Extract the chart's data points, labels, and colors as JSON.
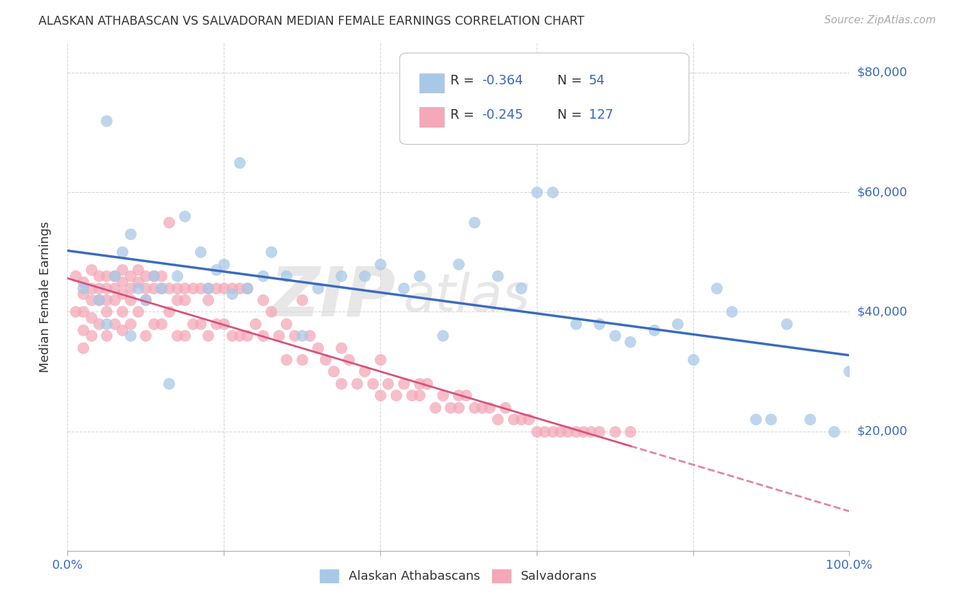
{
  "title": "ALASKAN ATHABASCAN VS SALVADORAN MEDIAN FEMALE EARNINGS CORRELATION CHART",
  "source": "Source: ZipAtlas.com",
  "ylabel": "Median Female Earnings",
  "ylim": [
    0,
    85000
  ],
  "xlim": [
    0,
    1.0
  ],
  "yticks": [
    20000,
    40000,
    60000,
    80000
  ],
  "ytick_labels": [
    "$20,000",
    "$40,000",
    "$60,000",
    "$80,000"
  ],
  "legend_label1": "Alaskan Athabascans",
  "legend_label2": "Salvadorans",
  "blue_color": "#a8c8e8",
  "pink_color": "#f4a8b8",
  "blue_line_color": "#3a6bbf",
  "pink_line_color": "#d94f7a",
  "background_color": "#ffffff",
  "watermark_zip": "ZIP",
  "watermark_atlas": "atlas",
  "text_color_blue": "#3a6bbf",
  "text_color_dark": "#333333",
  "text_color_gray": "#aaaaaa",
  "blue_x": [
    0.02,
    0.04,
    0.05,
    0.05,
    0.06,
    0.07,
    0.08,
    0.08,
    0.09,
    0.1,
    0.11,
    0.12,
    0.13,
    0.14,
    0.15,
    0.17,
    0.18,
    0.19,
    0.2,
    0.21,
    0.22,
    0.23,
    0.25,
    0.26,
    0.28,
    0.3,
    0.32,
    0.35,
    0.38,
    0.4,
    0.43,
    0.45,
    0.48,
    0.5,
    0.52,
    0.55,
    0.58,
    0.6,
    0.62,
    0.65,
    0.68,
    0.7,
    0.72,
    0.75,
    0.78,
    0.8,
    0.83,
    0.85,
    0.88,
    0.9,
    0.92,
    0.95,
    0.98,
    1.0
  ],
  "blue_y": [
    44000,
    42000,
    72000,
    38000,
    46000,
    50000,
    53000,
    36000,
    44000,
    42000,
    46000,
    44000,
    28000,
    46000,
    56000,
    50000,
    44000,
    47000,
    48000,
    43000,
    65000,
    44000,
    46000,
    50000,
    46000,
    36000,
    44000,
    46000,
    46000,
    48000,
    44000,
    46000,
    36000,
    48000,
    55000,
    46000,
    44000,
    60000,
    60000,
    38000,
    38000,
    36000,
    35000,
    37000,
    38000,
    32000,
    44000,
    40000,
    22000,
    22000,
    38000,
    22000,
    20000,
    30000
  ],
  "pink_x": [
    0.01,
    0.01,
    0.02,
    0.02,
    0.02,
    0.02,
    0.02,
    0.03,
    0.03,
    0.03,
    0.03,
    0.03,
    0.04,
    0.04,
    0.04,
    0.04,
    0.05,
    0.05,
    0.05,
    0.05,
    0.05,
    0.06,
    0.06,
    0.06,
    0.06,
    0.07,
    0.07,
    0.07,
    0.07,
    0.07,
    0.08,
    0.08,
    0.08,
    0.08,
    0.09,
    0.09,
    0.09,
    0.1,
    0.1,
    0.1,
    0.1,
    0.11,
    0.11,
    0.11,
    0.12,
    0.12,
    0.12,
    0.13,
    0.13,
    0.13,
    0.14,
    0.14,
    0.14,
    0.15,
    0.15,
    0.15,
    0.16,
    0.16,
    0.17,
    0.17,
    0.18,
    0.18,
    0.18,
    0.19,
    0.19,
    0.2,
    0.2,
    0.21,
    0.21,
    0.22,
    0.22,
    0.23,
    0.23,
    0.24,
    0.25,
    0.25,
    0.26,
    0.27,
    0.28,
    0.28,
    0.29,
    0.3,
    0.3,
    0.31,
    0.32,
    0.33,
    0.34,
    0.35,
    0.35,
    0.36,
    0.37,
    0.38,
    0.39,
    0.4,
    0.4,
    0.41,
    0.42,
    0.43,
    0.44,
    0.45,
    0.45,
    0.46,
    0.47,
    0.48,
    0.49,
    0.5,
    0.5,
    0.51,
    0.52,
    0.53,
    0.54,
    0.55,
    0.56,
    0.57,
    0.58,
    0.59,
    0.6,
    0.61,
    0.62,
    0.63,
    0.64,
    0.65,
    0.66,
    0.67,
    0.68,
    0.7,
    0.72
  ],
  "pink_y": [
    46000,
    40000,
    45000,
    43000,
    40000,
    37000,
    34000,
    47000,
    44000,
    42000,
    39000,
    36000,
    46000,
    44000,
    42000,
    38000,
    46000,
    44000,
    42000,
    40000,
    36000,
    46000,
    44000,
    42000,
    38000,
    47000,
    45000,
    43000,
    40000,
    37000,
    46000,
    44000,
    42000,
    38000,
    47000,
    45000,
    40000,
    46000,
    44000,
    42000,
    36000,
    46000,
    44000,
    38000,
    46000,
    44000,
    38000,
    55000,
    44000,
    40000,
    44000,
    42000,
    36000,
    44000,
    42000,
    36000,
    44000,
    38000,
    44000,
    38000,
    44000,
    42000,
    36000,
    44000,
    38000,
    44000,
    38000,
    44000,
    36000,
    44000,
    36000,
    44000,
    36000,
    38000,
    42000,
    36000,
    40000,
    36000,
    38000,
    32000,
    36000,
    42000,
    32000,
    36000,
    34000,
    32000,
    30000,
    34000,
    28000,
    32000,
    28000,
    30000,
    28000,
    32000,
    26000,
    28000,
    26000,
    28000,
    26000,
    28000,
    26000,
    28000,
    24000,
    26000,
    24000,
    26000,
    24000,
    26000,
    24000,
    24000,
    24000,
    22000,
    24000,
    22000,
    22000,
    22000,
    20000,
    20000,
    20000,
    20000,
    20000,
    20000,
    20000,
    20000,
    20000,
    20000,
    20000
  ]
}
